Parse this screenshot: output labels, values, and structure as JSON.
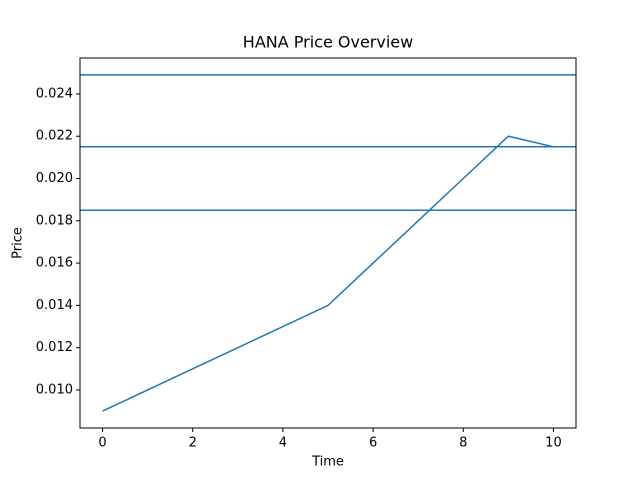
{
  "chart_data": {
    "type": "line",
    "title": "HANA Price Overview",
    "x_label": "Time",
    "y_label": "Price",
    "x": [
      0,
      1,
      2,
      3,
      4,
      5,
      6,
      7,
      8,
      9,
      10
    ],
    "series": [
      {
        "color": "#1f77b4",
        "values": [
          0.009,
          0.01,
          0.011,
          0.012,
          0.013,
          0.014,
          0.016,
          0.018,
          0.02,
          0.022,
          0.0215
        ]
      }
    ],
    "hlines": [
      0.0249,
      0.0215,
      0.0185
    ],
    "hline_color": "#1f77b4",
    "xlim": [
      -0.5,
      10.5
    ],
    "ylim": [
      0.0082,
      0.0257
    ],
    "xticks": [
      0,
      2,
      4,
      6,
      8,
      10
    ],
    "yticks": [
      {
        "value": 0.01,
        "label": "0.010"
      },
      {
        "value": 0.012,
        "label": "0.012"
      },
      {
        "value": 0.014,
        "label": "0.014"
      },
      {
        "value": 0.016,
        "label": "0.016"
      },
      {
        "value": 0.018,
        "label": "0.018"
      },
      {
        "value": 0.02,
        "label": "0.020"
      },
      {
        "value": 0.022,
        "label": "0.022"
      },
      {
        "value": 0.024,
        "label": "0.024"
      }
    ]
  }
}
